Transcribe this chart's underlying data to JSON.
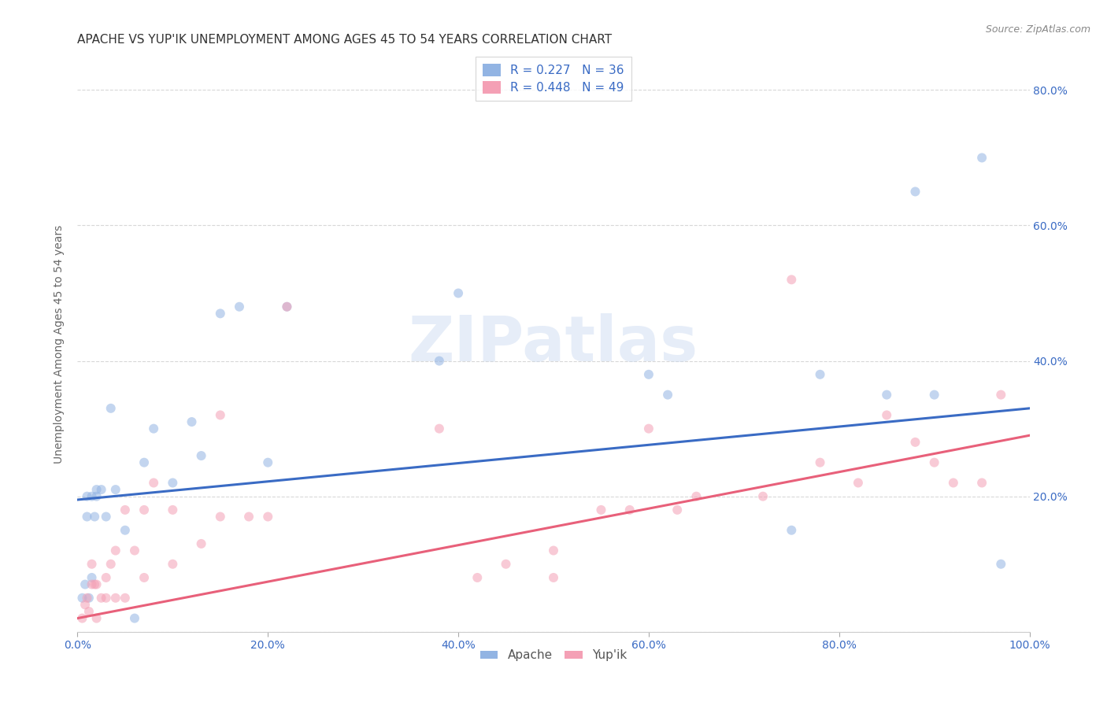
{
  "title": "APACHE VS YUP'IK UNEMPLOYMENT AMONG AGES 45 TO 54 YEARS CORRELATION CHART",
  "source": "Source: ZipAtlas.com",
  "ylabel": "Unemployment Among Ages 45 to 54 years",
  "apache_R": 0.227,
  "apache_N": 36,
  "yupik_R": 0.448,
  "yupik_N": 49,
  "apache_color": "#92b4e3",
  "yupik_color": "#f4a0b5",
  "apache_line_color": "#3a6bc4",
  "yupik_line_color": "#e8607a",
  "apache_x": [
    0.005,
    0.008,
    0.01,
    0.01,
    0.012,
    0.015,
    0.015,
    0.018,
    0.02,
    0.02,
    0.025,
    0.03,
    0.035,
    0.04,
    0.05,
    0.06,
    0.07,
    0.08,
    0.1,
    0.12,
    0.13,
    0.15,
    0.17,
    0.2,
    0.22,
    0.38,
    0.4,
    0.6,
    0.62,
    0.75,
    0.78,
    0.85,
    0.88,
    0.9,
    0.95,
    0.97
  ],
  "apache_y": [
    0.05,
    0.07,
    0.17,
    0.2,
    0.05,
    0.08,
    0.2,
    0.17,
    0.2,
    0.21,
    0.21,
    0.17,
    0.33,
    0.21,
    0.15,
    0.02,
    0.25,
    0.3,
    0.22,
    0.31,
    0.26,
    0.47,
    0.48,
    0.25,
    0.48,
    0.4,
    0.5,
    0.38,
    0.35,
    0.15,
    0.38,
    0.35,
    0.65,
    0.35,
    0.7,
    0.1
  ],
  "yupik_x": [
    0.005,
    0.008,
    0.01,
    0.012,
    0.015,
    0.015,
    0.018,
    0.02,
    0.02,
    0.025,
    0.03,
    0.03,
    0.035,
    0.04,
    0.04,
    0.05,
    0.05,
    0.06,
    0.07,
    0.07,
    0.08,
    0.1,
    0.1,
    0.13,
    0.15,
    0.15,
    0.18,
    0.2,
    0.22,
    0.38,
    0.42,
    0.45,
    0.5,
    0.5,
    0.55,
    0.58,
    0.6,
    0.63,
    0.65,
    0.72,
    0.75,
    0.78,
    0.82,
    0.85,
    0.88,
    0.9,
    0.92,
    0.95,
    0.97
  ],
  "yupik_y": [
    0.02,
    0.04,
    0.05,
    0.03,
    0.07,
    0.1,
    0.07,
    0.02,
    0.07,
    0.05,
    0.05,
    0.08,
    0.1,
    0.12,
    0.05,
    0.18,
    0.05,
    0.12,
    0.18,
    0.08,
    0.22,
    0.1,
    0.18,
    0.13,
    0.17,
    0.32,
    0.17,
    0.17,
    0.48,
    0.3,
    0.08,
    0.1,
    0.08,
    0.12,
    0.18,
    0.18,
    0.3,
    0.18,
    0.2,
    0.2,
    0.52,
    0.25,
    0.22,
    0.32,
    0.28,
    0.25,
    0.22,
    0.22,
    0.35
  ],
  "xlim": [
    0.0,
    1.0
  ],
  "ylim": [
    0.0,
    0.85
  ],
  "xticks": [
    0.0,
    0.2,
    0.4,
    0.6,
    0.8,
    1.0
  ],
  "xticklabels": [
    "0.0%",
    "20.0%",
    "40.0%",
    "60.0%",
    "80.0%",
    "100.0%"
  ],
  "right_yticks": [
    0.2,
    0.4,
    0.6,
    0.8
  ],
  "right_yticklabels": [
    "20.0%",
    "40.0%",
    "60.0%",
    "80.0%"
  ],
  "background_color": "#ffffff",
  "grid_color": "#d8d8d8",
  "title_fontsize": 11,
  "label_fontsize": 10,
  "tick_fontsize": 10,
  "marker_size": 75,
  "marker_alpha": 0.55,
  "line_width": 2.2,
  "apache_line_intercept": 0.195,
  "apache_line_slope": 0.135,
  "yupik_line_intercept": 0.02,
  "yupik_line_slope": 0.27
}
